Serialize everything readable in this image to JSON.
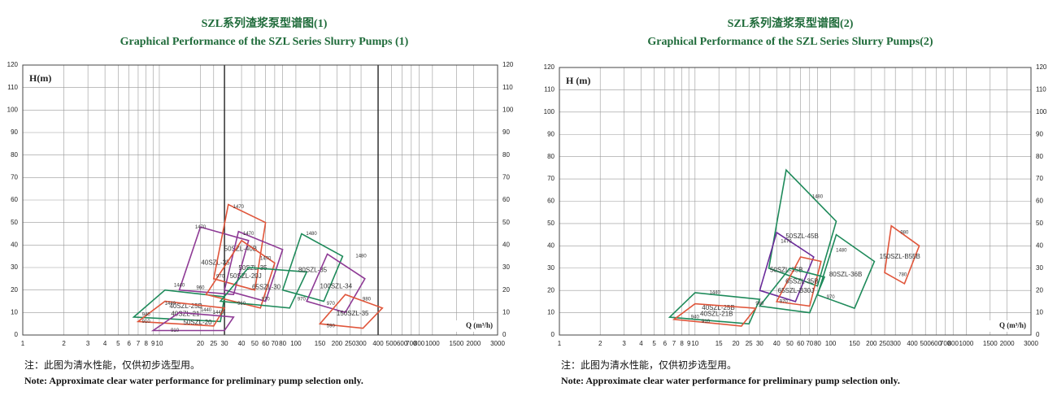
{
  "chart_data": [
    {
      "type": "performance",
      "title": "SZL系列渣浆泵型谱图(1)",
      "subtitle": "Graphical Performance of the SZL Series Slurry Pumps (1)",
      "y_label": "H(m)",
      "x_label": "Q (m³/h)",
      "log_x": true,
      "grid": true,
      "xlim": [
        1,
        3000
      ],
      "ylim": [
        0,
        120
      ],
      "xticks": [
        1,
        2,
        3,
        4,
        5,
        6,
        7,
        8,
        9,
        10,
        20,
        25,
        30,
        40,
        50,
        60,
        70,
        80,
        100,
        150,
        200,
        250,
        300,
        400,
        500,
        600,
        700,
        800,
        1000,
        1500,
        2000,
        3000
      ],
      "yticks": [
        0,
        10,
        20,
        30,
        40,
        50,
        60,
        70,
        80,
        90,
        100,
        110,
        120
      ],
      "dividers": [
        30,
        400
      ],
      "regions": [
        {
          "name": "40SZL-25B",
          "color": "#1e8a5a",
          "x": [
            6.5,
            11,
            30,
            28
          ],
          "y": [
            8,
            20,
            17,
            6
          ]
        },
        {
          "name": "40SZL-21",
          "color": "#e0553a",
          "x": [
            7,
            11,
            30,
            25
          ],
          "y": [
            6,
            15,
            12,
            4
          ]
        },
        {
          "name": "50SZL-20",
          "color": "#8e3a95",
          "x": [
            9,
            14,
            35,
            30
          ],
          "y": [
            2,
            10,
            8,
            2
          ]
        },
        {
          "name": "40SZL-35",
          "color": "#8e3a95",
          "x": [
            14,
            20,
            45,
            35
          ],
          "y": [
            20,
            48,
            42,
            18
          ]
        },
        {
          "name": "50SZL-40B",
          "color": "#e0553a",
          "x": [
            25,
            32,
            60,
            50
          ],
          "y": [
            25,
            58,
            50,
            20
          ]
        },
        {
          "name": "50SZL-35",
          "color": "#8e3a95",
          "x": [
            30,
            38,
            80,
            60
          ],
          "y": [
            20,
            46,
            38,
            15
          ]
        },
        {
          "name": "50SZL-20J",
          "color": "#e0553a",
          "x": [
            22,
            40,
            70,
            55
          ],
          "y": [
            18,
            42,
            32,
            12
          ]
        },
        {
          "name": "65SZL-30",
          "color": "#1e8a5a",
          "x": [
            28,
            45,
            120,
            90
          ],
          "y": [
            15,
            30,
            28,
            12
          ]
        },
        {
          "name": "80SZL-35",
          "color": "#1e8a5a",
          "x": [
            80,
            110,
            220,
            160
          ],
          "y": [
            20,
            45,
            35,
            15
          ]
        },
        {
          "name": "100SZL-34",
          "color": "#8e3a95",
          "x": [
            120,
            170,
            320,
            230
          ],
          "y": [
            15,
            36,
            25,
            10
          ]
        },
        {
          "name": "150SZL-35",
          "color": "#e0553a",
          "x": [
            150,
            230,
            430,
            310
          ],
          "y": [
            5,
            18,
            12,
            3
          ]
        }
      ],
      "annotations": [
        {
          "text": "1470",
          "x": 38,
          "y": 57
        },
        {
          "text": "1470",
          "x": 20,
          "y": 48
        },
        {
          "text": "1470",
          "x": 45,
          "y": 45
        },
        {
          "text": "1470",
          "x": 60,
          "y": 34
        },
        {
          "text": "1480",
          "x": 130,
          "y": 45
        },
        {
          "text": "1480",
          "x": 300,
          "y": 35
        },
        {
          "text": "1440",
          "x": 14,
          "y": 22
        },
        {
          "text": "1440",
          "x": 12,
          "y": 14
        },
        {
          "text": "1440",
          "x": 22,
          "y": 11
        },
        {
          "text": "1440",
          "x": 27,
          "y": 10
        },
        {
          "text": "960",
          "x": 20,
          "y": 21
        },
        {
          "text": "970",
          "x": 28,
          "y": 26
        },
        {
          "text": "960",
          "x": 40,
          "y": 14
        },
        {
          "text": "970",
          "x": 60,
          "y": 16
        },
        {
          "text": "970",
          "x": 110,
          "y": 16
        },
        {
          "text": "970",
          "x": 180,
          "y": 14
        },
        {
          "text": "980",
          "x": 330,
          "y": 16
        },
        {
          "text": "590",
          "x": 180,
          "y": 4
        },
        {
          "text": "940",
          "x": 8,
          "y": 9
        },
        {
          "text": "910",
          "x": 8,
          "y": 6
        },
        {
          "text": "910",
          "x": 13,
          "y": 2
        }
      ],
      "note_cn": "注：此图为清水性能，仅供初步选型用。",
      "note_en": "Note: Approximate clear water performance for preliminary pump selection only."
    },
    {
      "type": "performance",
      "title": "SZL系列渣浆泵型谱图(2)",
      "subtitle": "Graphical Performance of the SZL Series Slurry Pumps(2)",
      "y_label": "H (m)",
      "x_label": "Q (m³/h)",
      "log_x": true,
      "grid": true,
      "xlim": [
        1,
        3000
      ],
      "ylim": [
        0,
        120
      ],
      "xticks": [
        1,
        2,
        3,
        4,
        5,
        6,
        7,
        8,
        9,
        10,
        15,
        20,
        25,
        30,
        40,
        50,
        60,
        70,
        80,
        100,
        150,
        200,
        250,
        300,
        400,
        500,
        600,
        700,
        800,
        1000,
        1500,
        2000,
        3000
      ],
      "yticks": [
        0,
        10,
        20,
        30,
        40,
        50,
        60,
        70,
        80,
        90,
        100,
        110,
        120
      ],
      "regions": [
        {
          "name": "40SZL-25B",
          "color": "#1e8a5a",
          "x": [
            6.5,
            10,
            30,
            25
          ],
          "y": [
            8,
            19,
            16,
            5
          ]
        },
        {
          "name": "40SZL-21B",
          "color": "#e0553a",
          "x": [
            7,
            10,
            28,
            22
          ],
          "y": [
            7,
            14,
            12,
            4
          ]
        },
        {
          "name": "50SZL-45B",
          "color": "#1e8a5a",
          "x": [
            35,
            47,
            110,
            80
          ],
          "y": [
            30,
            74,
            51,
            22
          ]
        },
        {
          "name": "50SZL-35B",
          "color": "#6a2a9a",
          "x": [
            30,
            40,
            75,
            55
          ],
          "y": [
            20,
            46,
            35,
            15
          ]
        },
        {
          "name": "65SZL-35B",
          "color": "#e0553a",
          "x": [
            40,
            60,
            85,
            70
          ],
          "y": [
            15,
            35,
            33,
            13
          ]
        },
        {
          "name": "65SZL-B30J",
          "color": "#1e8a5a",
          "x": [
            30,
            50,
            90,
            70
          ],
          "y": [
            13,
            30,
            26,
            10
          ]
        },
        {
          "name": "80SZL-36B",
          "color": "#1e8a5a",
          "x": [
            80,
            110,
            210,
            150
          ],
          "y": [
            18,
            45,
            33,
            12
          ]
        },
        {
          "name": "150SZL-B55B",
          "color": "#e0553a",
          "x": [
            250,
            280,
            450,
            350
          ],
          "y": [
            28,
            49,
            40,
            23
          ]
        }
      ],
      "annotations": [
        {
          "text": "1480",
          "x": 80,
          "y": 62
        },
        {
          "text": "1470",
          "x": 47,
          "y": 42
        },
        {
          "text": "1480",
          "x": 120,
          "y": 38
        },
        {
          "text": "980",
          "x": 350,
          "y": 46
        },
        {
          "text": "780",
          "x": 340,
          "y": 27
        },
        {
          "text": "1440",
          "x": 14,
          "y": 19
        },
        {
          "text": "960",
          "x": 30,
          "y": 14
        },
        {
          "text": "970",
          "x": 45,
          "y": 15
        },
        {
          "text": "970",
          "x": 100,
          "y": 17
        },
        {
          "text": "940",
          "x": 10,
          "y": 8
        },
        {
          "text": "910",
          "x": 12,
          "y": 6
        }
      ],
      "note_cn": "注：此图为清水性能，仅供初步选型用。",
      "note_en": "Note: Approximate clear water performance for preliminary pump selection only."
    }
  ]
}
